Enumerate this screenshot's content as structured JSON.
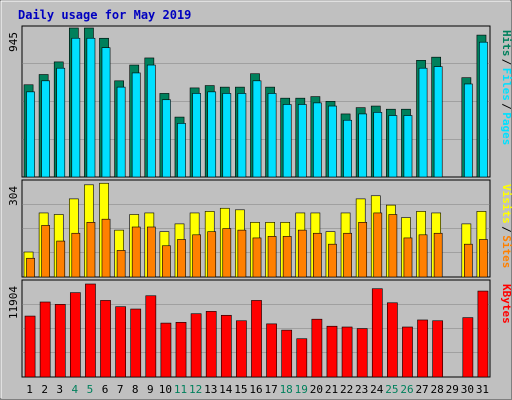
{
  "chart_data": {
    "type": "bar",
    "title": "Daily usage for May 2019",
    "categories": [
      "1",
      "2",
      "3",
      "4",
      "5",
      "6",
      "7",
      "8",
      "9",
      "10",
      "11",
      "12",
      "13",
      "14",
      "15",
      "16",
      "17",
      "18",
      "19",
      "20",
      "21",
      "22",
      "23",
      "24",
      "25",
      "26",
      "27",
      "28",
      "29",
      "30",
      "31"
    ],
    "weekend_days": [
      4,
      5,
      11,
      12,
      18,
      19,
      25,
      26
    ],
    "colors": {
      "hits": "#00805c",
      "files": "#00e0ff",
      "visits": "#ffff00",
      "sites": "#ff8000",
      "kbytes": "#ff0000",
      "title": "#0000c0",
      "weekend_label": "#00805c",
      "background": "#c0c0c0"
    },
    "panels": [
      {
        "ylim_label": "945",
        "ymax": 945,
        "legend": [
          {
            "text": "Hits",
            "color": "#00805c"
          },
          {
            "text": "Files",
            "color": "#00e0ff"
          },
          {
            "text": "Pages",
            "color": "#00e0ff"
          }
        ],
        "series": [
          {
            "name": "Hits",
            "values": [
              585,
              650,
              730,
              945,
              945,
              880,
              610,
              710,
              755,
              530,
              380,
              565,
              580,
              570,
              570,
              655,
              570,
              500,
              500,
              510,
              480,
              400,
              440,
              450,
              430,
              430,
              740,
              760,
              null,
              630,
              900
            ]
          },
          {
            "name": "Files",
            "values": [
              540,
              610,
              690,
              880,
              880,
              820,
              570,
              660,
              710,
              490,
              340,
              530,
              540,
              530,
              530,
              610,
              530,
              460,
              460,
              470,
              450,
              360,
              400,
              410,
              390,
              390,
              690,
              700,
              null,
              590,
              855
            ]
          }
        ]
      },
      {
        "ylim_label": "304",
        "ymax": 304,
        "legend": [
          {
            "text": "Visits",
            "color": "#ffff00"
          },
          {
            "text": "Sites",
            "color": "#ff8000"
          }
        ],
        "series": [
          {
            "name": "Visits",
            "values": [
              80,
              205,
              200,
              250,
              295,
              300,
              150,
              200,
              205,
              145,
              170,
              205,
              210,
              220,
              215,
              175,
              175,
              175,
              205,
              205,
              145,
              205,
              250,
              260,
              230,
              190,
              210,
              205,
              null,
              170,
              210
            ]
          },
          {
            "name": "Sites",
            "values": [
              60,
              165,
              115,
              140,
              175,
              185,
              85,
              160,
              160,
              100,
              120,
              135,
              145,
              155,
              150,
              125,
              130,
              130,
              150,
              140,
              105,
              140,
              175,
              205,
              200,
              125,
              135,
              140,
              null,
              105,
              120
            ]
          }
        ]
      },
      {
        "ylim_label": "11904",
        "ymax": 11904,
        "legend": [
          {
            "text": "KBytes",
            "color": "#ff0000"
          }
        ],
        "series": [
          {
            "name": "KBytes",
            "values": [
              7800,
              9600,
              9300,
              10800,
              11904,
              9800,
              9000,
              8700,
              10400,
              6900,
              7000,
              8100,
              8400,
              7900,
              7200,
              9800,
              6800,
              6000,
              4900,
              7400,
              6500,
              6400,
              6200,
              11300,
              9500,
              6400,
              7300,
              7200,
              null,
              7600,
              11000
            ]
          }
        ]
      }
    ]
  }
}
